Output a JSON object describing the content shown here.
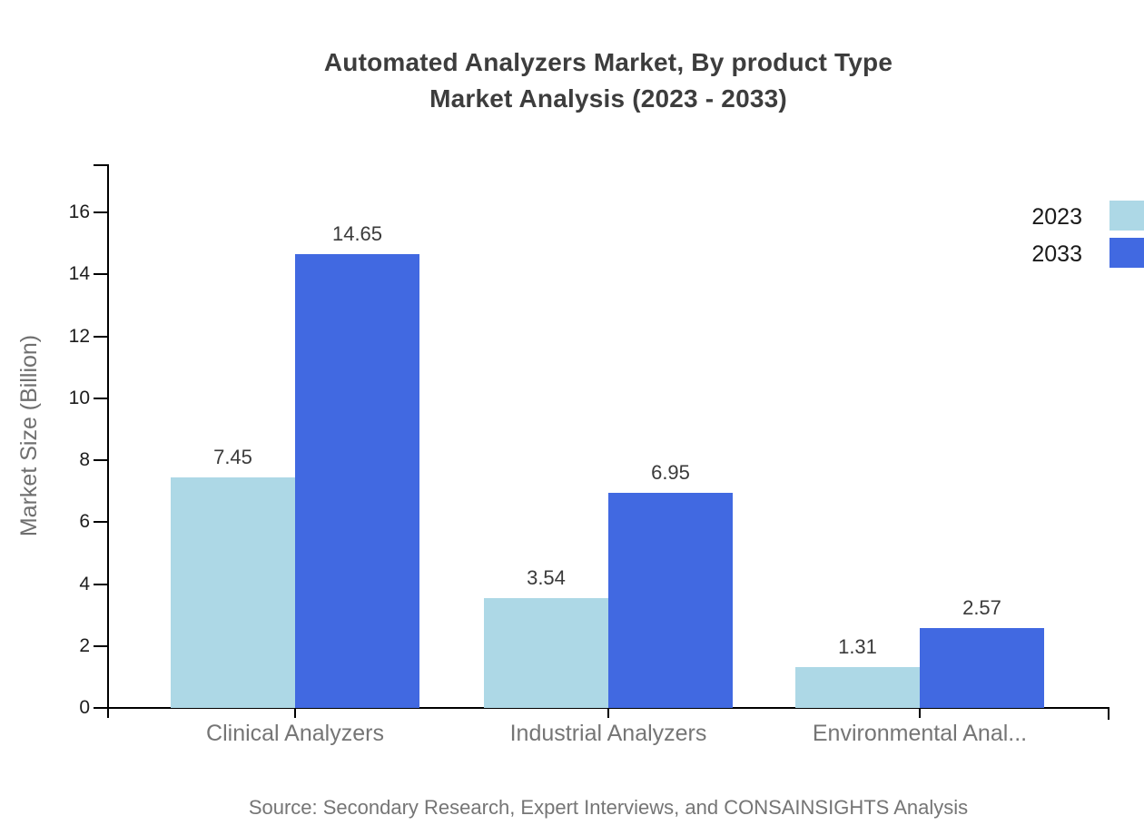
{
  "title": {
    "line1": "Automated Analyzers Market, By product Type",
    "line2": "Market Analysis (2023 - 2033)"
  },
  "chart_data": {
    "type": "bar",
    "categories": [
      "Clinical Analyzers",
      "Industrial Analyzers",
      "Environmental Anal..."
    ],
    "series": [
      {
        "name": "2023",
        "color": "#ADD8E6",
        "values": [
          7.45,
          3.54,
          1.31
        ]
      },
      {
        "name": "2033",
        "color": "#4169E1",
        "values": [
          14.65,
          6.95,
          2.57
        ]
      }
    ],
    "title": "Automated Analyzers Market, By product Type Market Analysis (2023 - 2033)",
    "xlabel": "",
    "ylabel": "Market Size (Billion)",
    "ylim": [
      0,
      16
    ],
    "ytick_step": 2,
    "yticks": [
      0,
      2,
      4,
      6,
      8,
      10,
      12,
      14,
      16
    ],
    "grid": false,
    "value_labels": true,
    "legend_position": "top-right",
    "axis_color": "#000000"
  },
  "legend": {
    "items": [
      {
        "label": "2023",
        "color": "#ADD8E6"
      },
      {
        "label": "2033",
        "color": "#4169E1"
      }
    ]
  },
  "footer": {
    "source": "Source: Secondary Research, Expert Interviews, and CONSAINSIGHTS Analysis"
  },
  "colors": {
    "series_2023": "#ADD8E6",
    "series_2033": "#4169E1",
    "axis": "#000000",
    "title_text": "#3d3d3d",
    "tick_label_text": "#1c1c1c",
    "value_label_text": "#3a3a3a",
    "category_label_text": "#757575",
    "muted_text": "#6f6f6f"
  }
}
